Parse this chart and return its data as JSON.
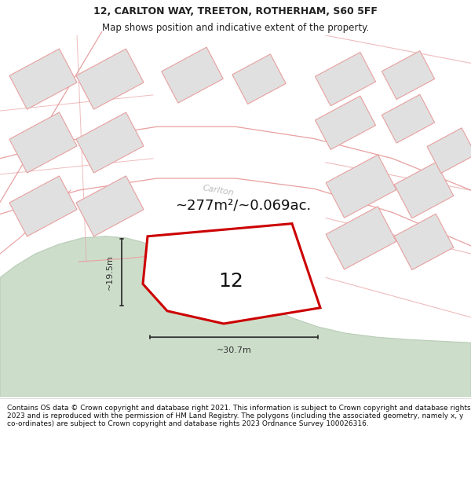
{
  "title_line1": "12, CARLTON WAY, TREETON, ROTHERHAM, S60 5FF",
  "title_line2": "Map shows position and indicative extent of the property.",
  "footer_text": "Contains OS data © Crown copyright and database right 2021. This information is subject to Crown copyright and database rights 2023 and is reproduced with the permission of HM Land Registry. The polygons (including the associated geometry, namely x, y co-ordinates) are subject to Crown copyright and database rights 2023 Ordnance Survey 100026316.",
  "area_text": "~277m²/~0.069ac.",
  "number_label": "12",
  "dim_width": "~30.7m",
  "dim_height": "~19.5m",
  "bg_color": "#ffffff",
  "map_bg": "#f5f5f5",
  "building_fill": "#e0e0e0",
  "building_stroke": "#e8a0a0",
  "green_fill": "#ccdeca",
  "green_stroke": "#b8ccb6",
  "subject_fill": "#ffffff",
  "subject_stroke": "#cc0000",
  "road_line_color": "#e8a0a0",
  "dim_color": "#333333",
  "street_label_color": "#bbbbbb",
  "title_color": "#222222",
  "footer_color": "#111111",
  "title_fontsize": 9.0,
  "subtitle_fontsize": 8.5,
  "area_fontsize": 13,
  "number_fontsize": 18,
  "dim_fontsize": 8,
  "street_fontsize": 8,
  "footer_fontsize": 6.5
}
